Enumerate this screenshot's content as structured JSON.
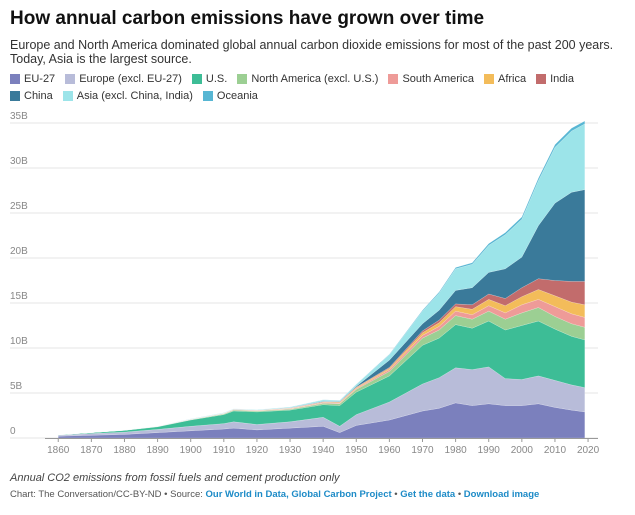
{
  "header": {
    "title": "How annual carbon emissions have grown over time",
    "subtitle": "Europe and North America dominated global annual carbon dioxide emissions for most of the past 200 years. Today, Asia is the largest source."
  },
  "footer": {
    "note": "Annual CO2 emissions from fossil fuels and cement production only",
    "source_prefix": "Chart: The Conversation/CC-BY-ND • Source: ",
    "source_link": "Our World in Data, Global Carbon Project",
    "sep1": " • ",
    "get_data": "Get the data",
    "sep2": " • ",
    "download": "Download image"
  },
  "chart_data": {
    "type": "area",
    "stacked": true,
    "grid": true,
    "legend_position": "top",
    "x": [
      1860,
      1870,
      1880,
      1890,
      1900,
      1910,
      1913,
      1920,
      1930,
      1940,
      1945,
      1950,
      1960,
      1970,
      1975,
      1980,
      1985,
      1990,
      1995,
      2000,
      2005,
      2010,
      2015,
      2019
    ],
    "xticks": [
      1860,
      1870,
      1880,
      1890,
      1900,
      1910,
      1920,
      1930,
      1940,
      1950,
      1960,
      1970,
      1980,
      1990,
      2000,
      2010,
      2020
    ],
    "xlim": [
      1856,
      2023
    ],
    "ylim": [
      0,
      35
    ],
    "yticks": [
      0,
      5,
      10,
      15,
      20,
      25,
      30,
      35
    ],
    "ytick_labels": [
      "0",
      "5B",
      "10B",
      "15B",
      "20B",
      "25B",
      "30B",
      "35B"
    ],
    "series": [
      {
        "name": "EU-27",
        "color": "#7b80bd",
        "values": [
          0.2,
          0.3,
          0.4,
          0.6,
          0.8,
          1.0,
          1.1,
          0.9,
          1.1,
          1.3,
          0.6,
          1.4,
          2.0,
          3.0,
          3.3,
          3.9,
          3.6,
          3.8,
          3.6,
          3.6,
          3.8,
          3.4,
          3.1,
          2.9
        ]
      },
      {
        "name": "Europe (excl. EU-27)",
        "color": "#b8bcd9",
        "values": [
          0.1,
          0.2,
          0.25,
          0.35,
          0.5,
          0.6,
          0.7,
          0.6,
          0.7,
          1.0,
          0.7,
          1.2,
          2.0,
          3.0,
          3.4,
          3.9,
          4.0,
          4.1,
          3.0,
          2.9,
          3.1,
          3.0,
          2.8,
          2.7
        ]
      },
      {
        "name": "U.S.",
        "color": "#3dbd96",
        "values": [
          0.06,
          0.1,
          0.2,
          0.3,
          0.7,
          1.0,
          1.2,
          1.4,
          1.3,
          1.4,
          2.3,
          2.5,
          2.9,
          4.3,
          4.4,
          4.8,
          4.6,
          5.1,
          5.4,
          6.0,
          6.1,
          5.7,
          5.4,
          5.3
        ]
      },
      {
        "name": "North America (excl. U.S.)",
        "color": "#9ccf93",
        "values": [
          0.0,
          0.01,
          0.02,
          0.03,
          0.05,
          0.08,
          0.1,
          0.1,
          0.1,
          0.15,
          0.2,
          0.3,
          0.5,
          0.8,
          0.9,
          1.0,
          1.0,
          1.1,
          1.2,
          1.4,
          1.5,
          1.4,
          1.4,
          1.4
        ]
      },
      {
        "name": "South America",
        "color": "#ee9b98",
        "values": [
          0.0,
          0.0,
          0.0,
          0.01,
          0.02,
          0.03,
          0.04,
          0.04,
          0.05,
          0.07,
          0.08,
          0.1,
          0.2,
          0.3,
          0.4,
          0.5,
          0.5,
          0.6,
          0.7,
          0.9,
          0.9,
          1.1,
          1.1,
          1.1
        ]
      },
      {
        "name": "Africa",
        "color": "#f3bc5a",
        "values": [
          0.0,
          0.0,
          0.0,
          0.0,
          0.01,
          0.02,
          0.02,
          0.03,
          0.04,
          0.06,
          0.07,
          0.1,
          0.15,
          0.3,
          0.4,
          0.5,
          0.6,
          0.7,
          0.8,
          0.9,
          1.1,
          1.2,
          1.3,
          1.4
        ]
      },
      {
        "name": "India",
        "color": "#c26c6c",
        "values": [
          0.0,
          0.0,
          0.0,
          0.01,
          0.01,
          0.02,
          0.03,
          0.03,
          0.04,
          0.05,
          0.06,
          0.06,
          0.1,
          0.2,
          0.3,
          0.3,
          0.5,
          0.6,
          0.8,
          1.0,
          1.2,
          1.7,
          2.3,
          2.6
        ]
      },
      {
        "name": "China",
        "color": "#3a7a9a",
        "values": [
          0.0,
          0.0,
          0.0,
          0.0,
          0.0,
          0.0,
          0.0,
          0.0,
          0.02,
          0.05,
          0.05,
          0.08,
          0.8,
          0.8,
          1.1,
          1.5,
          1.9,
          2.4,
          3.3,
          3.4,
          5.9,
          8.6,
          9.9,
          10.2
        ]
      },
      {
        "name": "Asia (excl. China, India)",
        "color": "#9ce4e9",
        "values": [
          0.0,
          0.0,
          0.01,
          0.01,
          0.02,
          0.04,
          0.05,
          0.05,
          0.08,
          0.15,
          0.1,
          0.2,
          0.6,
          1.4,
          1.9,
          2.4,
          2.6,
          3.0,
          3.8,
          4.2,
          5.0,
          6.2,
          6.8,
          7.3
        ]
      },
      {
        "name": "Oceania",
        "color": "#57b6d3",
        "values": [
          0.0,
          0.0,
          0.0,
          0.0,
          0.01,
          0.01,
          0.01,
          0.01,
          0.01,
          0.02,
          0.02,
          0.03,
          0.06,
          0.1,
          0.12,
          0.15,
          0.17,
          0.2,
          0.22,
          0.26,
          0.28,
          0.3,
          0.32,
          0.32
        ]
      }
    ]
  }
}
